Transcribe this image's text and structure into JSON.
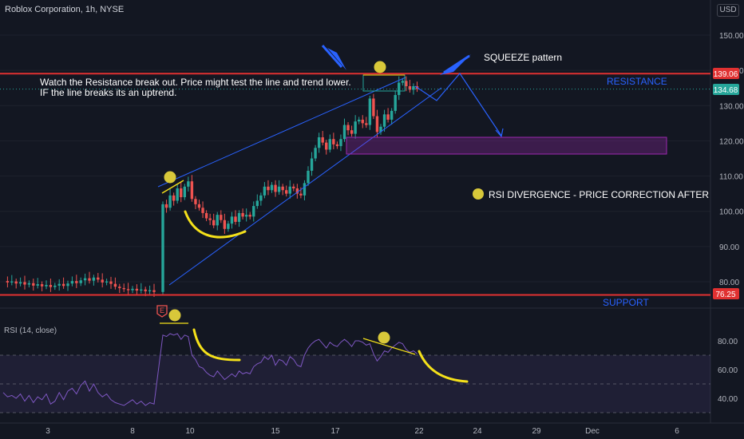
{
  "header": {
    "title": "Roblox Corporation, 1h, NYSE",
    "currency": "USD"
  },
  "colors": {
    "background": "#131722",
    "up": "#26a69a",
    "down": "#ef5350",
    "grid": "#1e222d",
    "resistance": "#e03131",
    "drawing": "#2962ff",
    "highlight": "#f5e11a",
    "purple": "#9c27b0"
  },
  "chart_data": {
    "type": "candlestick",
    "price_axis": {
      "ticks": [
        "150.00",
        "140.00",
        "130.00",
        "120.00",
        "110.00",
        "100.00",
        "90.00",
        "80.00"
      ],
      "ylim": [
        74,
        156
      ]
    },
    "date_axis": {
      "ticks": [
        "3",
        "8",
        "10",
        "15",
        "17",
        "22",
        "24",
        "29",
        "Dec",
        "6"
      ]
    },
    "price_labels": {
      "resistance": "139.06",
      "last": "134.68",
      "support": "76.25"
    },
    "levels": {
      "resistance": 139.06,
      "last": 134.68,
      "support": 76.25
    },
    "rsi": {
      "title": "RSI (14, close)",
      "ticks": [
        "80.00",
        "60.00",
        "40.00"
      ],
      "ylim": [
        25,
        95
      ],
      "bands": [
        70,
        50,
        30
      ]
    },
    "annotations": {
      "note_line1": "Watch the Resistance break out. Price might test the line and trend lower.",
      "note_line2": "IF the line breaks its an uptrend.",
      "squeeze": "SQUEEZE pattern",
      "resistance": "RESISTANCE",
      "support": "SUPPORT",
      "divergence": "RSI DIVERGENCE - PRICE CORRECTION AFTER",
      "earnings_badge": "E"
    },
    "candles_close": [
      80.2,
      79.8,
      80.1,
      79.5,
      79.9,
      79.2,
      79.6,
      78.9,
      79.3,
      78.7,
      79.1,
      78.5,
      78.9,
      79.4,
      78.8,
      79.5,
      80.2,
      79.6,
      80.4,
      81.0,
      80.3,
      81.2,
      80.6,
      79.8,
      80.1,
      79.4,
      78.6,
      78.2,
      77.9,
      77.6,
      78.0,
      77.5,
      77.8,
      77.3,
      77.6,
      77.1,
      102.0,
      101.0,
      104.5,
      103.0,
      106.5,
      104.0,
      107.0,
      108.5,
      103.5,
      102.0,
      101.0,
      99.5,
      98.0,
      97.5,
      96.0,
      99.0,
      97.5,
      95.0,
      96.5,
      98.5,
      97.0,
      99.5,
      98.5,
      99.0,
      98.5,
      101.5,
      103.0,
      104.5,
      107.0,
      106.0,
      107.5,
      105.5,
      107.0,
      106.0,
      105.0,
      107.0,
      106.5,
      105.0,
      104.5,
      108.0,
      111.5,
      115.0,
      118.0,
      121.0,
      119.5,
      117.5,
      120.5,
      119.0,
      118.5,
      120.5,
      124.5,
      123.0,
      122.0,
      125.5,
      126.0,
      125.0,
      124.5,
      132.0,
      127.0,
      122.5,
      124.0,
      127.5,
      126.0,
      128.5,
      133.0,
      136.5,
      137.0,
      135.5,
      134.5,
      135.5,
      134.7
    ],
    "rsi_values": [
      44,
      41,
      42,
      40,
      43,
      38,
      42,
      37,
      41,
      39,
      43,
      36,
      38,
      44,
      39,
      45,
      47,
      43,
      49,
      52,
      45,
      50,
      44,
      41,
      43,
      39,
      37,
      36,
      35,
      37,
      39,
      36,
      38,
      35,
      37,
      36,
      84,
      83,
      85,
      84,
      85,
      81,
      84,
      83,
      70,
      67,
      62,
      61,
      58,
      56,
      55,
      59,
      56,
      53,
      55,
      57,
      55,
      59,
      57,
      58,
      57,
      62,
      64,
      65,
      69,
      67,
      70,
      63,
      67,
      66,
      63,
      69,
      67,
      63,
      62,
      70,
      75,
      78,
      80,
      81,
      78,
      75,
      79,
      77,
      76,
      79,
      81,
      79,
      76,
      80,
      80,
      79,
      77,
      78,
      71,
      66,
      69,
      73,
      72,
      75,
      77,
      79,
      78,
      74,
      72,
      73,
      71
    ]
  }
}
